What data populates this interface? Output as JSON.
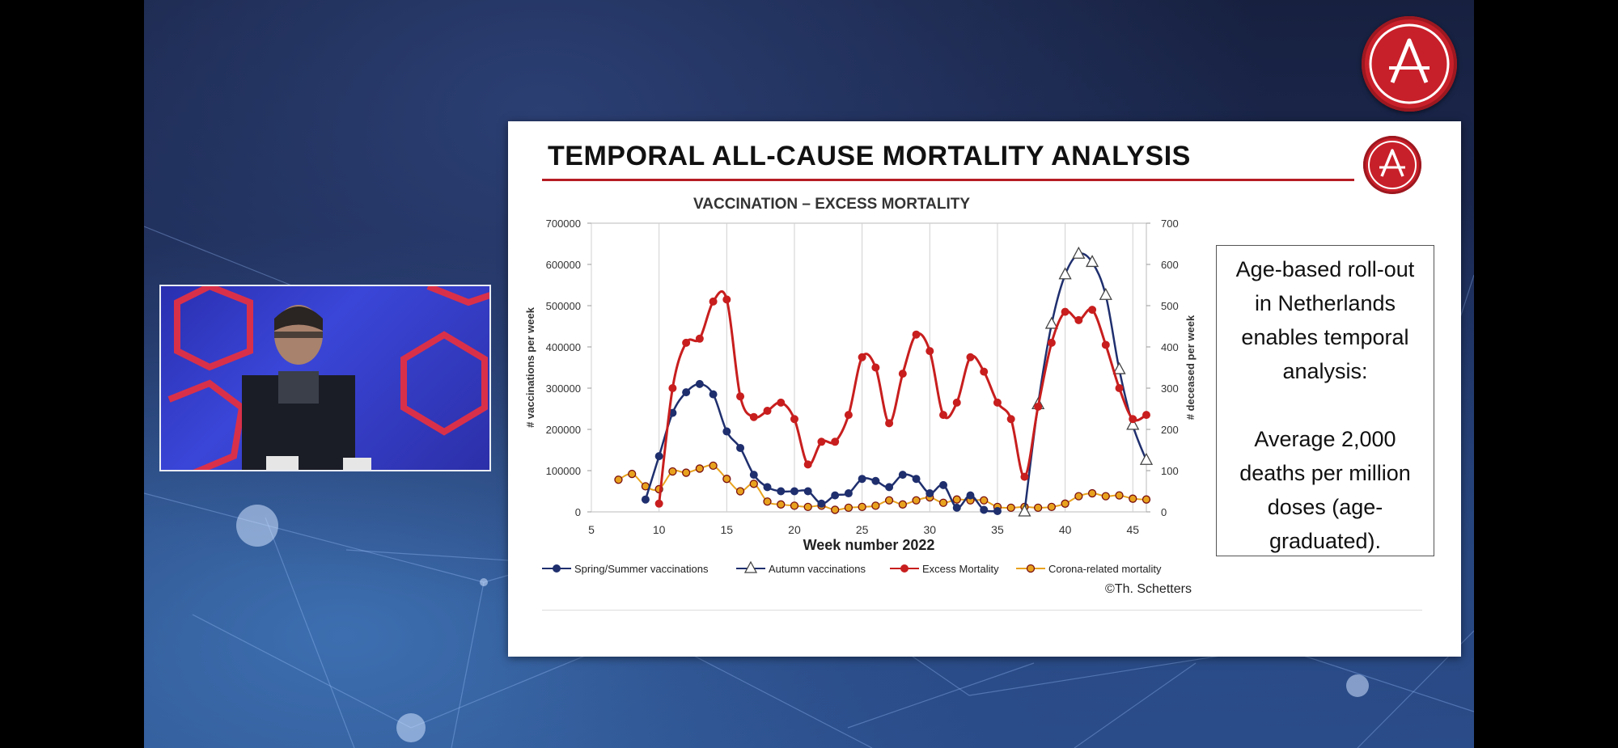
{
  "slide": {
    "title": "TEMPORAL ALL-CAUSE MORTALITY ANALYSIS",
    "note_line1": "Age-based roll-out in Netherlands enables temporal analysis:",
    "note_line2": "Average 2,000 deaths per million doses (age-graduated).",
    "credit": "©Th. Schetters"
  },
  "colors": {
    "brand_red": "#c8202a",
    "spring_series": "#1f2f6e",
    "autumn_series": "#1f2f6e",
    "excess_series": "#c81e1e",
    "corona_series": "#e8a21e"
  },
  "chart_data": {
    "type": "line",
    "title": "VACCINATION – EXCESS MORTALITY",
    "xlabel": "Week number 2022",
    "ylabel_left": "# vaccinations per week",
    "ylabel_right": "# deceased per week",
    "xlim": [
      5,
      46
    ],
    "xticks": [
      5,
      10,
      15,
      20,
      25,
      30,
      35,
      40,
      45
    ],
    "ylim_left": [
      0,
      700000
    ],
    "yticks_left": [
      "0",
      "100000",
      "200000",
      "300000",
      "400000",
      "500000",
      "600000",
      "700000"
    ],
    "ylim_right": [
      0,
      700
    ],
    "yticks_right": [
      "0",
      "100",
      "200",
      "300",
      "400",
      "500",
      "600",
      "700"
    ],
    "series": [
      {
        "name": "Spring/Summer vaccinations",
        "axis": "left",
        "marker": "circle",
        "x": [
          9,
          10,
          11,
          12,
          13,
          14,
          15,
          16,
          17,
          18,
          19,
          20,
          21,
          22,
          23,
          24,
          25,
          26,
          27,
          28,
          29,
          30,
          31,
          32,
          33,
          34,
          35
        ],
        "values": [
          30000,
          135000,
          240000,
          290000,
          310000,
          285000,
          195000,
          155000,
          90000,
          60000,
          50000,
          50000,
          50000,
          20000,
          40000,
          45000,
          80000,
          75000,
          60000,
          90000,
          80000,
          45000,
          65000,
          10000,
          40000,
          5000,
          2000
        ]
      },
      {
        "name": "Autumn vaccinations",
        "axis": "left",
        "marker": "triangle",
        "x": [
          37,
          38,
          39,
          40,
          41,
          42,
          43,
          44,
          45,
          46
        ],
        "values": [
          0,
          260000,
          455000,
          575000,
          625000,
          605000,
          525000,
          345000,
          210000,
          125000
        ]
      },
      {
        "name": "Excess Mortality",
        "axis": "right",
        "marker": "circle",
        "x": [
          10,
          11,
          12,
          13,
          14,
          15,
          16,
          17,
          18,
          19,
          20,
          21,
          22,
          23,
          24,
          25,
          26,
          27,
          28,
          29,
          30,
          31,
          32,
          33,
          34,
          35,
          36,
          37,
          38,
          39,
          40,
          41,
          42,
          43,
          44,
          45,
          46
        ],
        "values": [
          20,
          300,
          410,
          420,
          510,
          515,
          280,
          230,
          245,
          265,
          225,
          115,
          170,
          170,
          235,
          375,
          350,
          215,
          335,
          430,
          390,
          235,
          265,
          375,
          340,
          265,
          225,
          85,
          255,
          410,
          485,
          465,
          490,
          405,
          300,
          225,
          235
        ]
      },
      {
        "name": "Corona-related mortality",
        "axis": "right",
        "marker": "circle",
        "x": [
          7,
          8,
          9,
          10,
          11,
          12,
          13,
          14,
          15,
          16,
          17,
          18,
          19,
          20,
          21,
          22,
          23,
          24,
          25,
          26,
          27,
          28,
          29,
          30,
          31,
          32,
          33,
          34,
          35,
          36,
          37,
          38,
          39,
          40,
          41,
          42,
          43,
          44,
          45,
          46
        ],
        "values": [
          78,
          92,
          62,
          55,
          98,
          95,
          105,
          112,
          80,
          50,
          68,
          25,
          18,
          15,
          12,
          15,
          5,
          10,
          12,
          15,
          28,
          18,
          28,
          35,
          22,
          30,
          28,
          28,
          12,
          10,
          12,
          10,
          12,
          20,
          38,
          45,
          38,
          40,
          32,
          30
        ]
      }
    ]
  }
}
